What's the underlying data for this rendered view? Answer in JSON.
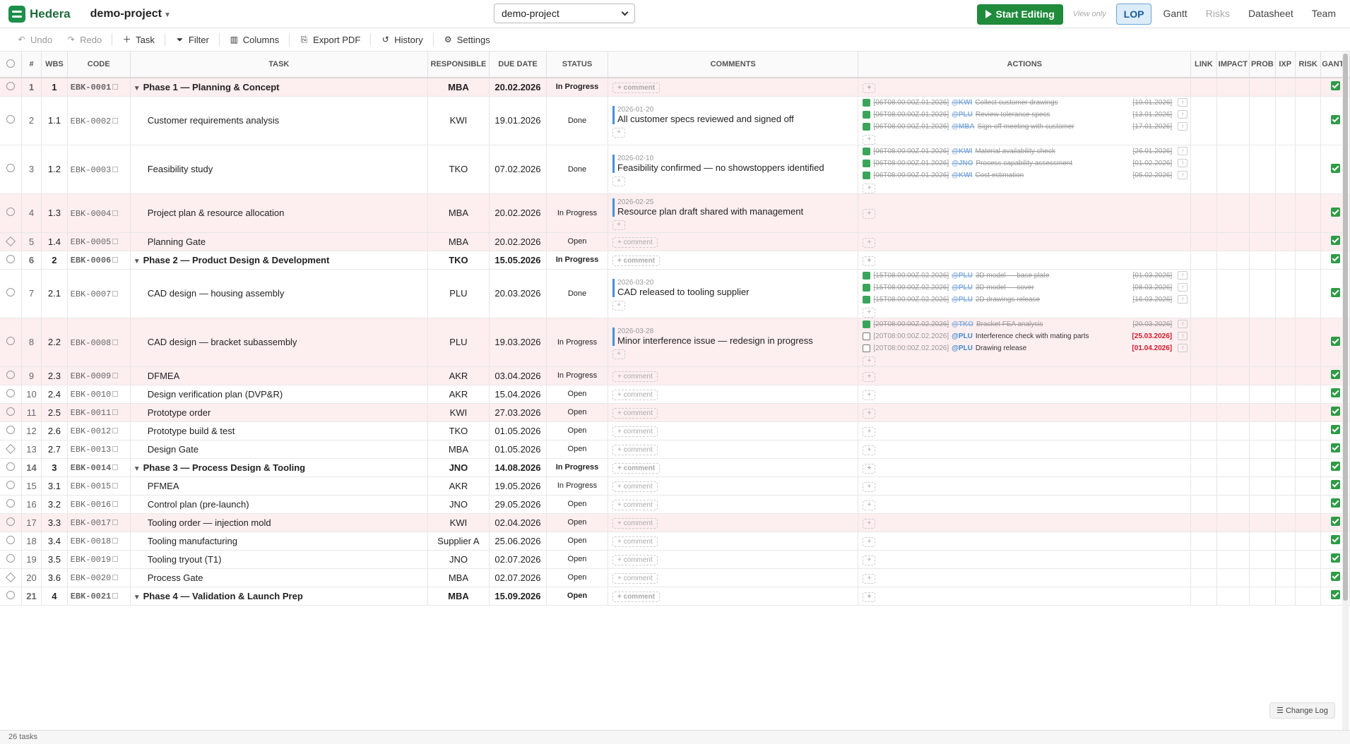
{
  "app": {
    "name": "Hedera",
    "project": "demo-project",
    "project_select": "demo-project"
  },
  "header": {
    "start_editing": "Start Editing",
    "view_only": "View only",
    "tabs": [
      {
        "label": "LOP",
        "state": "active"
      },
      {
        "label": "Gantt",
        "state": "normal"
      },
      {
        "label": "Risks",
        "state": "disabled"
      },
      {
        "label": "Datasheet",
        "state": "normal"
      },
      {
        "label": "Team",
        "state": "normal"
      }
    ]
  },
  "toolbar": {
    "undo": "Undo",
    "redo": "Redo",
    "task": "Task",
    "filter": "Filter",
    "columns": "Columns",
    "export": "Export PDF",
    "history": "History",
    "settings": "Settings"
  },
  "columns": {
    "num": "#",
    "wbs": "WBS",
    "code": "CODE",
    "task": "TASK",
    "responsible": "RESPONSIBLE",
    "due": "DUE DATE",
    "status": "STATUS",
    "comments": "COMMENTS",
    "actions": "ACTIONS",
    "link": "LINK",
    "impact": "IMPACT",
    "prob": "PROB",
    "ixp": "IXP",
    "risk": "RISK",
    "gantt": "GANTT"
  },
  "comment_btn": "+ comment",
  "plus": "+",
  "rows": [
    {
      "n": "1",
      "wbs": "1",
      "code": "EBK-0001",
      "task": "Phase 1 — Planning & Concept",
      "resp": "MBA",
      "due": "20.02.2026",
      "status": "In Progress",
      "phase": true,
      "hl": true,
      "ms": false
    },
    {
      "n": "2",
      "wbs": "1.1",
      "code": "EBK-0002",
      "task": "Customer requirements analysis",
      "resp": "KWI",
      "due": "19.01.2026",
      "status": "Done",
      "hl": false,
      "comment": {
        "date": "2026-01-20",
        "text": "All customer specs reviewed and signed off"
      },
      "actions": [
        {
          "ts": "[06T08:00:00Z.01.2026]",
          "who": "@KWI",
          "text": "Collect customer drawings",
          "due": "[10.01.2026]",
          "done": true
        },
        {
          "ts": "[06T08:00:00Z.01.2026]",
          "who": "@PLU",
          "text": "Review tolerance specs",
          "due": "[13.01.2026]",
          "done": true
        },
        {
          "ts": "[06T08:00:00Z.01.2026]",
          "who": "@MBA",
          "text": "Sign-off meeting with customer",
          "due": "[17.01.2026]",
          "done": true
        }
      ]
    },
    {
      "n": "3",
      "wbs": "1.2",
      "code": "EBK-0003",
      "task": "Feasibility study",
      "resp": "TKO",
      "due": "07.02.2026",
      "status": "Done",
      "hl": false,
      "comment": {
        "date": "2026-02-10",
        "text": "Feasibility confirmed — no showstoppers identified"
      },
      "actions": [
        {
          "ts": "[06T08:00:00Z.01.2026]",
          "who": "@KWI",
          "text": "Material availability check",
          "due": "[26.01.2026]",
          "done": true
        },
        {
          "ts": "[06T08:00:00Z.01.2026]",
          "who": "@JNO",
          "text": "Process capability assessment",
          "due": "[01.02.2026]",
          "done": true
        },
        {
          "ts": "[06T08:00:00Z.01.2026]",
          "who": "@KWI",
          "text": "Cost estimation",
          "due": "[05.02.2026]",
          "done": true
        }
      ]
    },
    {
      "n": "4",
      "wbs": "1.3",
      "code": "EBK-0004",
      "task": "Project plan & resource allocation",
      "resp": "MBA",
      "due": "20.02.2026",
      "status": "In Progress",
      "hl": true,
      "comment": {
        "date": "2026-02-25",
        "text": "Resource plan draft shared with management"
      },
      "actions": []
    },
    {
      "n": "5",
      "wbs": "1.4",
      "code": "EBK-0005",
      "task": "Planning Gate",
      "resp": "MBA",
      "due": "20.02.2026",
      "status": "Open",
      "hl": true,
      "ms": true
    },
    {
      "n": "6",
      "wbs": "2",
      "code": "EBK-0006",
      "task": "Phase 2 — Product Design & Development",
      "resp": "TKO",
      "due": "15.05.2026",
      "status": "In Progress",
      "phase": true,
      "hl": false
    },
    {
      "n": "7",
      "wbs": "2.1",
      "code": "EBK-0007",
      "task": "CAD design — housing assembly",
      "resp": "PLU",
      "due": "20.03.2026",
      "status": "Done",
      "hl": false,
      "comment": {
        "date": "2026-03-20",
        "text": "CAD released to tooling supplier"
      },
      "actions": [
        {
          "ts": "[15T08:00:00Z.02.2026]",
          "who": "@PLU",
          "text": "3D model — base plate",
          "due": "[01.03.2026]",
          "done": true
        },
        {
          "ts": "[15T08:00:00Z.02.2026]",
          "who": "@PLU",
          "text": "3D model — cover",
          "due": "[08.03.2026]",
          "done": true
        },
        {
          "ts": "[15T08:00:00Z.02.2026]",
          "who": "@PLU",
          "text": "2D drawings release",
          "due": "[16.03.2026]",
          "done": true
        }
      ]
    },
    {
      "n": "8",
      "wbs": "2.2",
      "code": "EBK-0008",
      "task": "CAD design — bracket subassembly",
      "resp": "PLU",
      "due": "19.03.2026",
      "status": "In Progress",
      "hl": true,
      "comment": {
        "date": "2026-03-28",
        "text": "Minor interference issue — redesign in progress"
      },
      "actions": [
        {
          "ts": "[20T08:00:00Z.02.2026]",
          "who": "@TKO",
          "text": "Bracket FEA analysis",
          "due": "[20.03.2026]",
          "done": true
        },
        {
          "ts": "[20T08:00:00Z.02.2026]",
          "who": "@PLU",
          "text": "Interference check with mating parts",
          "due": "[25.03.2026]",
          "done": false
        },
        {
          "ts": "[20T08:00:00Z.02.2026]",
          "who": "@PLU",
          "text": "Drawing release",
          "due": "[01.04.2026]",
          "done": false
        }
      ]
    },
    {
      "n": "9",
      "wbs": "2.3",
      "code": "EBK-0009",
      "task": "DFMEA",
      "resp": "AKR",
      "due": "03.04.2026",
      "status": "In Progress",
      "hl": true
    },
    {
      "n": "10",
      "wbs": "2.4",
      "code": "EBK-0010",
      "task": "Design verification plan (DVP&R)",
      "resp": "AKR",
      "due": "15.04.2026",
      "status": "Open",
      "hl": false
    },
    {
      "n": "11",
      "wbs": "2.5",
      "code": "EBK-0011",
      "task": "Prototype order",
      "resp": "KWI",
      "due": "27.03.2026",
      "status": "Open",
      "hl": true
    },
    {
      "n": "12",
      "wbs": "2.6",
      "code": "EBK-0012",
      "task": "Prototype build & test",
      "resp": "TKO",
      "due": "01.05.2026",
      "status": "Open",
      "hl": false
    },
    {
      "n": "13",
      "wbs": "2.7",
      "code": "EBK-0013",
      "task": "Design Gate",
      "resp": "MBA",
      "due": "01.05.2026",
      "status": "Open",
      "hl": false,
      "ms": true
    },
    {
      "n": "14",
      "wbs": "3",
      "code": "EBK-0014",
      "task": "Phase 3 — Process Design & Tooling",
      "resp": "JNO",
      "due": "14.08.2026",
      "status": "In Progress",
      "phase": true,
      "hl": false
    },
    {
      "n": "15",
      "wbs": "3.1",
      "code": "EBK-0015",
      "task": "PFMEA",
      "resp": "AKR",
      "due": "19.05.2026",
      "status": "In Progress",
      "hl": false
    },
    {
      "n": "16",
      "wbs": "3.2",
      "code": "EBK-0016",
      "task": "Control plan (pre-launch)",
      "resp": "JNO",
      "due": "29.05.2026",
      "status": "Open",
      "hl": false
    },
    {
      "n": "17",
      "wbs": "3.3",
      "code": "EBK-0017",
      "task": "Tooling order — injection mold",
      "resp": "KWI",
      "due": "02.04.2026",
      "status": "Open",
      "hl": true
    },
    {
      "n": "18",
      "wbs": "3.4",
      "code": "EBK-0018",
      "task": "Tooling manufacturing",
      "resp": "Supplier A",
      "due": "25.06.2026",
      "status": "Open",
      "hl": false
    },
    {
      "n": "19",
      "wbs": "3.5",
      "code": "EBK-0019",
      "task": "Tooling tryout (T1)",
      "resp": "JNO",
      "due": "02.07.2026",
      "status": "Open",
      "hl": false
    },
    {
      "n": "20",
      "wbs": "3.6",
      "code": "EBK-0020",
      "task": "Process Gate",
      "resp": "MBA",
      "due": "02.07.2026",
      "status": "Open",
      "hl": false,
      "ms": true
    },
    {
      "n": "21",
      "wbs": "4",
      "code": "EBK-0021",
      "task": "Phase 4 — Validation & Launch Prep",
      "resp": "MBA",
      "due": "15.09.2026",
      "status": "Open",
      "phase": true,
      "hl": false
    }
  ],
  "footer": {
    "count": "26 tasks",
    "changelog": "Change Log"
  }
}
